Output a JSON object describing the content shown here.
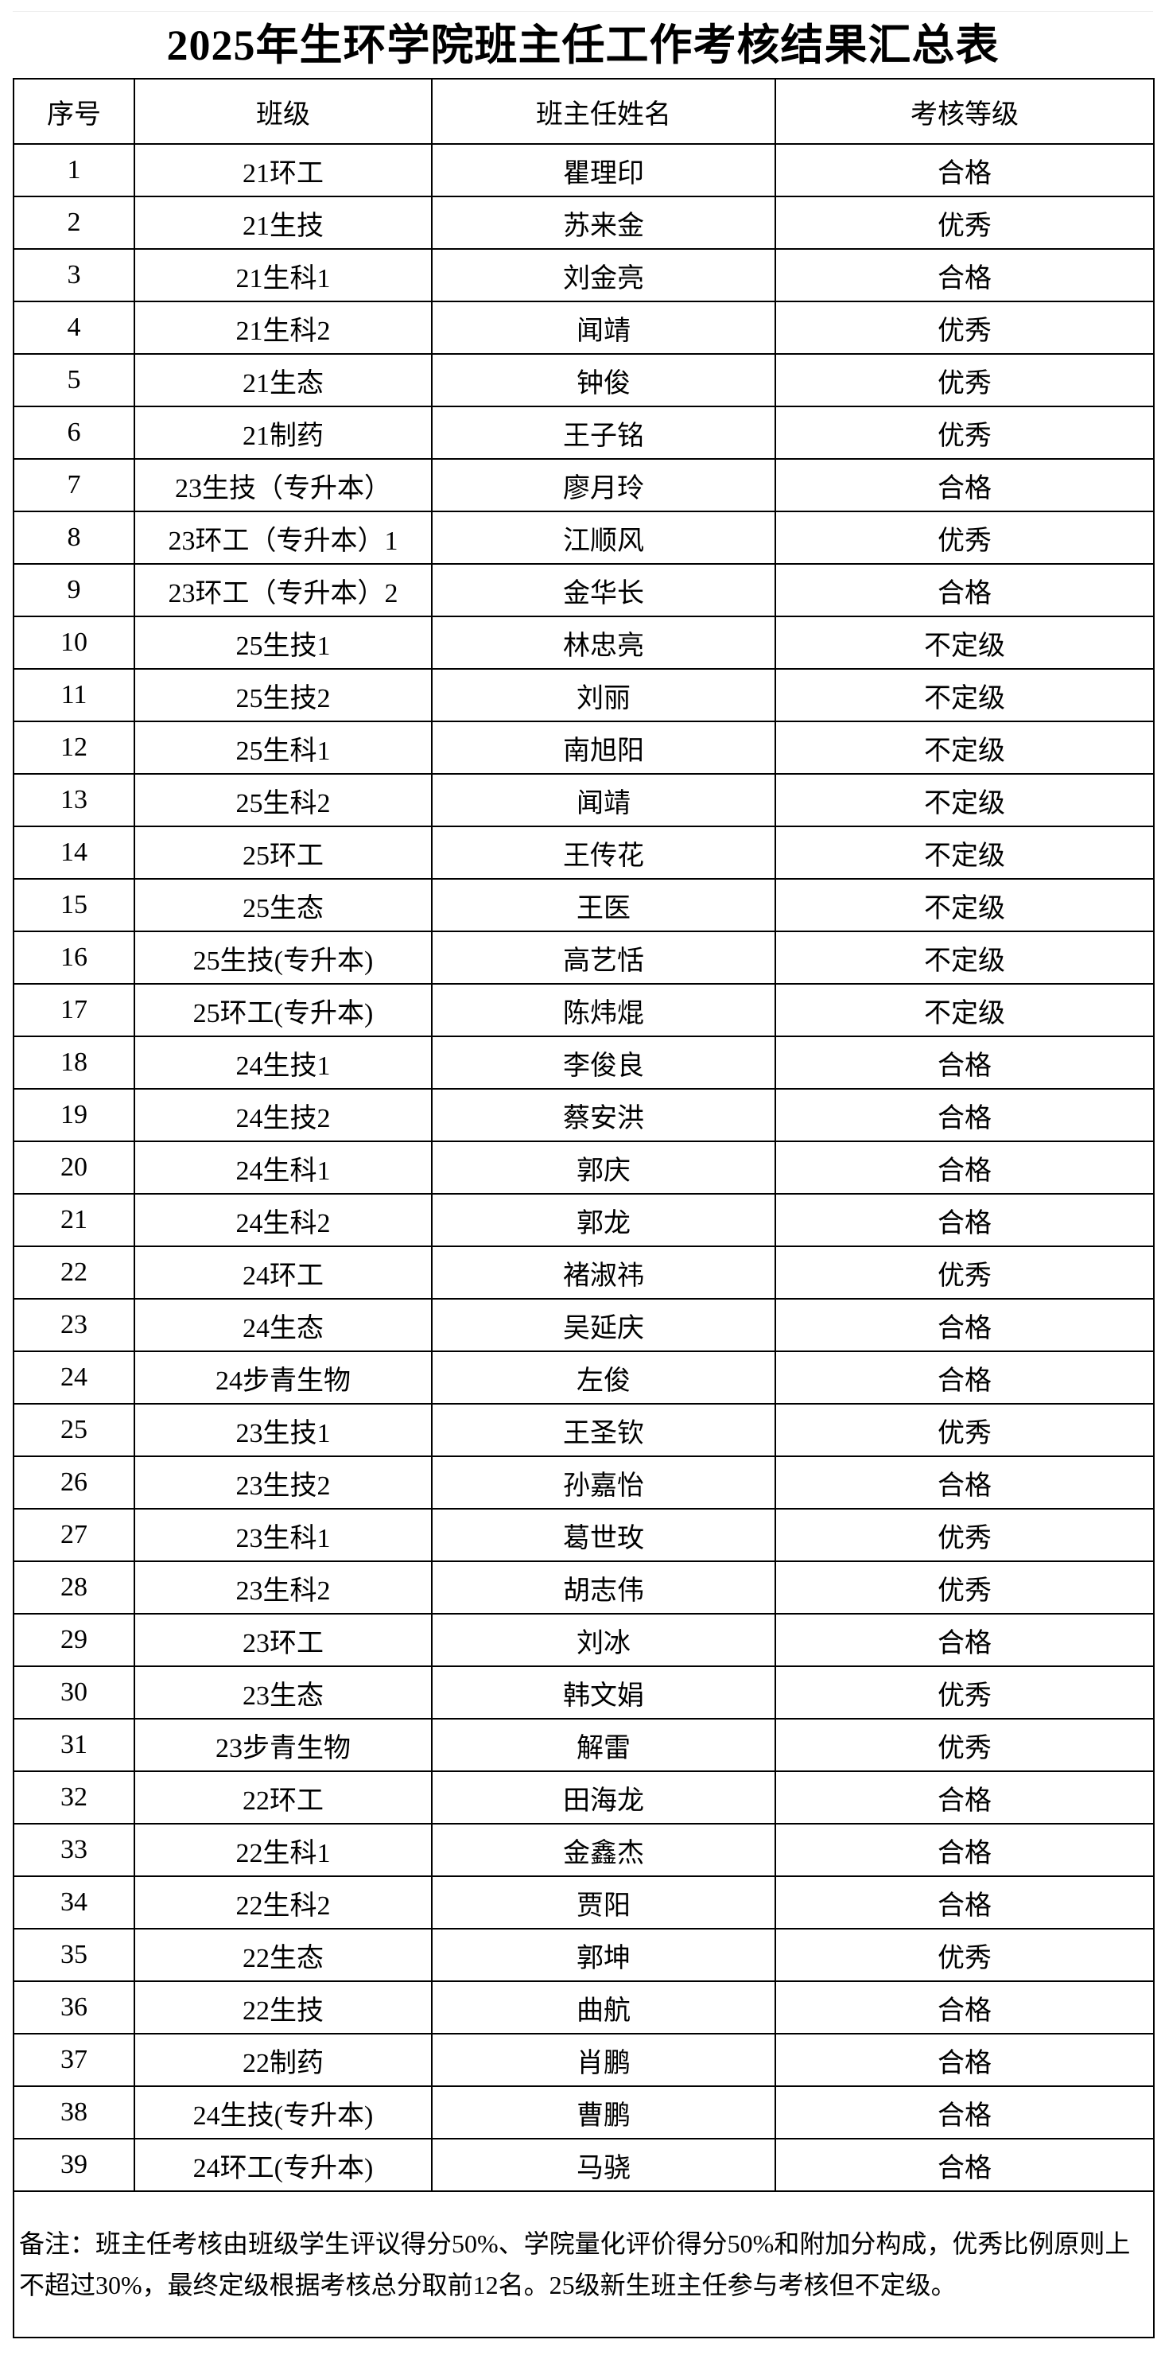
{
  "title": "2025年生环学院班主任工作考核结果汇总表",
  "headers": [
    "序号",
    "班级",
    "班主任姓名",
    "考核等级"
  ],
  "rows": [
    [
      "1",
      "21环工",
      "瞿理印",
      "合格"
    ],
    [
      "2",
      "21生技",
      "苏来金",
      "优秀"
    ],
    [
      "3",
      "21生科1",
      "刘金亮",
      "合格"
    ],
    [
      "4",
      "21生科2",
      "闻靖",
      "优秀"
    ],
    [
      "5",
      "21生态",
      "钟俊",
      "优秀"
    ],
    [
      "6",
      "21制药",
      "王子铭",
      "优秀"
    ],
    [
      "7",
      "23生技（专升本）",
      "廖月玲",
      "合格"
    ],
    [
      "8",
      "23环工（专升本）1",
      "江顺风",
      "优秀"
    ],
    [
      "9",
      "23环工（专升本）2",
      "金华长",
      "合格"
    ],
    [
      "10",
      "25生技1",
      "林忠亮",
      "不定级"
    ],
    [
      "11",
      "25生技2",
      "刘丽",
      "不定级"
    ],
    [
      "12",
      "25生科1",
      "南旭阳",
      "不定级"
    ],
    [
      "13",
      "25生科2",
      "闻靖",
      "不定级"
    ],
    [
      "14",
      "25环工",
      "王传花",
      "不定级"
    ],
    [
      "15",
      "25生态",
      "王医",
      "不定级"
    ],
    [
      "16",
      "25生技(专升本)",
      "高艺恬",
      "不定级"
    ],
    [
      "17",
      "25环工(专升本)",
      "陈炜焜",
      "不定级"
    ],
    [
      "18",
      "24生技1",
      "李俊良",
      "合格"
    ],
    [
      "19",
      "24生技2",
      "蔡安洪",
      "合格"
    ],
    [
      "20",
      "24生科1",
      "郭庆",
      "合格"
    ],
    [
      "21",
      "24生科2",
      "郭龙",
      "合格"
    ],
    [
      "22",
      "24环工",
      "褚淑祎",
      "优秀"
    ],
    [
      "23",
      "24生态",
      "吴延庆",
      "合格"
    ],
    [
      "24",
      "24步青生物",
      "左俊",
      "合格"
    ],
    [
      "25",
      "23生技1",
      "王圣钦",
      "优秀"
    ],
    [
      "26",
      "23生技2",
      "孙嘉怡",
      "合格"
    ],
    [
      "27",
      "23生科1",
      "葛世玫",
      "优秀"
    ],
    [
      "28",
      "23生科2",
      "胡志伟",
      "优秀"
    ],
    [
      "29",
      "23环工",
      "刘冰",
      "合格"
    ],
    [
      "30",
      "23生态",
      "韩文娟",
      "优秀"
    ],
    [
      "31",
      "23步青生物",
      "解雷",
      "优秀"
    ],
    [
      "32",
      "22环工",
      "田海龙",
      "合格"
    ],
    [
      "33",
      "22生科1",
      "金鑫杰",
      "合格"
    ],
    [
      "34",
      "22生科2",
      "贾阳",
      "合格"
    ],
    [
      "35",
      "22生态",
      "郭坤",
      "优秀"
    ],
    [
      "36",
      "22生技",
      "曲航",
      "合格"
    ],
    [
      "37",
      "22制药",
      "肖鹏",
      "合格"
    ],
    [
      "38",
      "24生技(专升本)",
      "曹鹏",
      "合格"
    ],
    [
      "39",
      "24环工(专升本)",
      "马骁",
      "合格"
    ]
  ],
  "note": "备注：班主任考核由班级学生评议得分50%、学院量化评价得分50%和附加分构成，优秀比例原则上不超过30%，最终定级根据考核总分取前12名。25级新生班主任参与考核但不定级。"
}
